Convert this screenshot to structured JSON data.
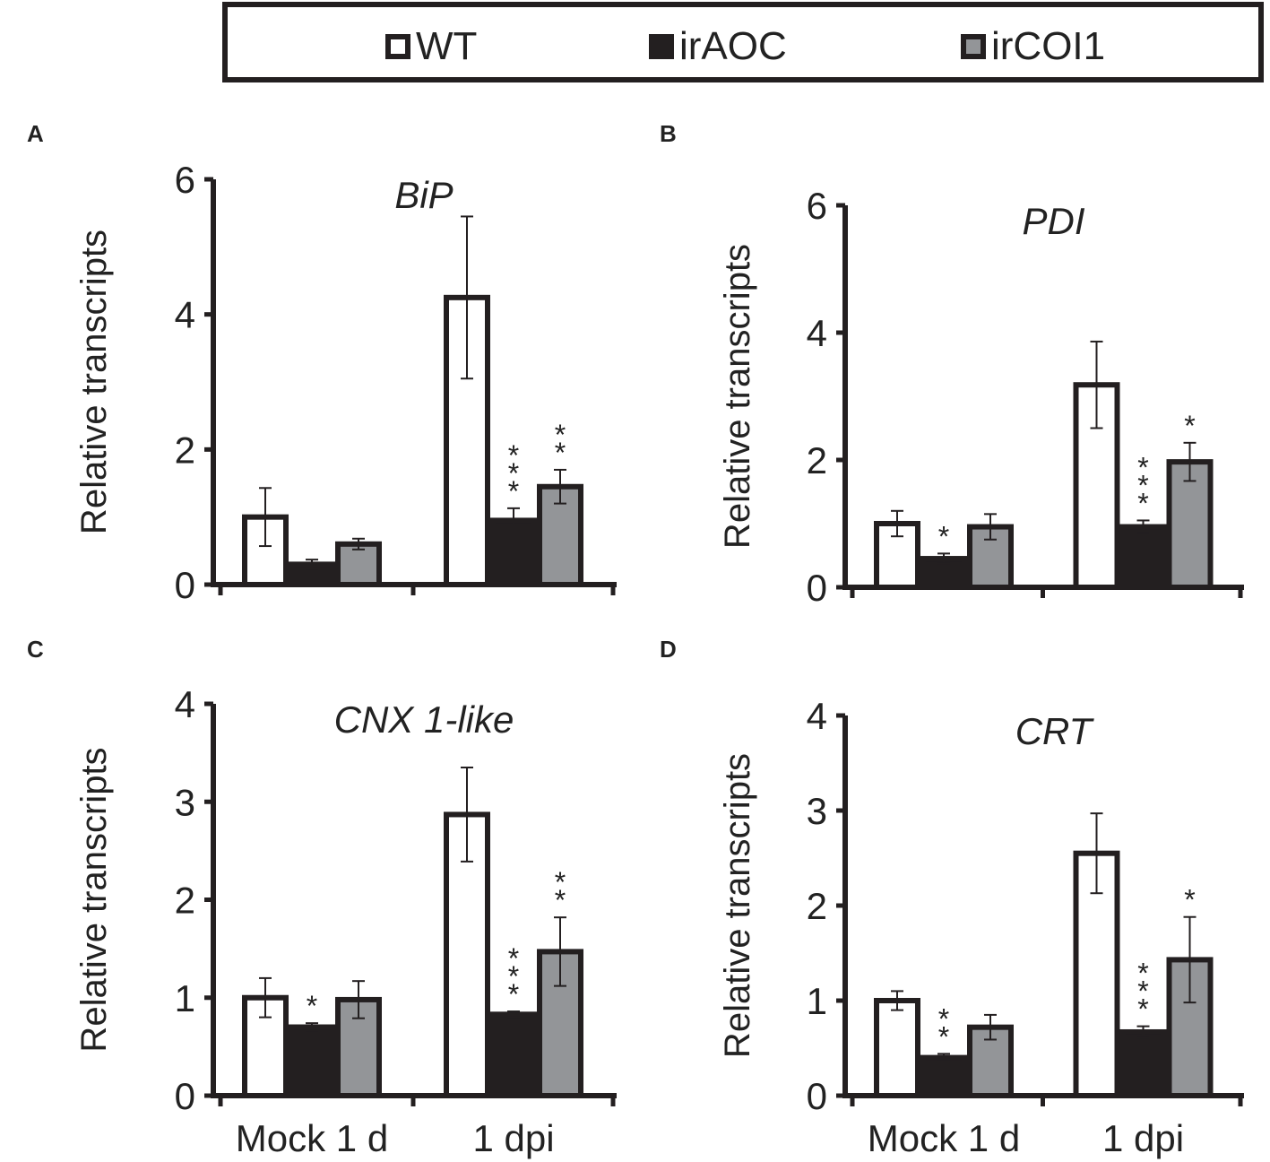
{
  "legend": [
    {
      "label": "WT",
      "color": "#ffffff"
    },
    {
      "label": "irAOC",
      "color": "#231f20"
    },
    {
      "label": "irCOI1",
      "color": "#939598"
    }
  ],
  "chart_data": [
    {
      "panel": "A",
      "type": "bar",
      "title": "BiP",
      "ylabel": "Relative transcripts",
      "xlabel": "",
      "ylim": [
        0,
        6
      ],
      "yticks": [
        0,
        2,
        4,
        6
      ],
      "categories": [
        "",
        ""
      ],
      "series": [
        {
          "name": "WT",
          "values": [
            1.0,
            4.25
          ],
          "errors": [
            0.43,
            1.2
          ],
          "sig": [
            "",
            ""
          ]
        },
        {
          "name": "irAOC",
          "values": [
            0.3,
            0.95
          ],
          "errors": [
            0.07,
            0.18
          ],
          "sig": [
            "",
            "***"
          ]
        },
        {
          "name": "irCOI1",
          "values": [
            0.6,
            1.45
          ],
          "errors": [
            0.08,
            0.25
          ],
          "sig": [
            "",
            "**"
          ]
        }
      ]
    },
    {
      "panel": "B",
      "type": "bar",
      "title": "PDI",
      "ylabel": "Relative transcripts",
      "xlabel": "",
      "ylim": [
        0,
        6
      ],
      "yticks": [
        0,
        2,
        4,
        6
      ],
      "categories": [
        "",
        ""
      ],
      "series": [
        {
          "name": "WT",
          "values": [
            1.0,
            3.18
          ],
          "errors": [
            0.2,
            0.68
          ],
          "sig": [
            "",
            ""
          ]
        },
        {
          "name": "irAOC",
          "values": [
            0.45,
            0.95
          ],
          "errors": [
            0.08,
            0.1
          ],
          "sig": [
            "*",
            "***"
          ]
        },
        {
          "name": "irCOI1",
          "values": [
            0.95,
            1.97
          ],
          "errors": [
            0.2,
            0.3
          ],
          "sig": [
            "",
            "*"
          ]
        }
      ]
    },
    {
      "panel": "C",
      "type": "bar",
      "title": "CNX 1-like",
      "ylabel": "Relative transcripts",
      "xlabel": "",
      "ylim": [
        0,
        4
      ],
      "yticks": [
        0,
        1,
        2,
        3,
        4
      ],
      "categories": [
        "Mock 1 d",
        "1 dpi"
      ],
      "series": [
        {
          "name": "WT",
          "values": [
            1.0,
            2.87
          ],
          "errors": [
            0.2,
            0.48
          ],
          "sig": [
            "",
            ""
          ]
        },
        {
          "name": "irAOC",
          "values": [
            0.7,
            0.83
          ],
          "errors": [
            0.04,
            0.03
          ],
          "sig": [
            "*",
            "***"
          ]
        },
        {
          "name": "irCOI1",
          "values": [
            0.98,
            1.47
          ],
          "errors": [
            0.19,
            0.35
          ],
          "sig": [
            "",
            "**"
          ]
        }
      ]
    },
    {
      "panel": "D",
      "type": "bar",
      "title": "CRT",
      "ylabel": "Relative transcripts",
      "xlabel": "",
      "ylim": [
        0,
        4
      ],
      "yticks": [
        0,
        1,
        2,
        3,
        4
      ],
      "categories": [
        "Mock 1 d",
        "1 dpi"
      ],
      "series": [
        {
          "name": "WT",
          "values": [
            1.0,
            2.55
          ],
          "errors": [
            0.1,
            0.42
          ],
          "sig": [
            "",
            ""
          ]
        },
        {
          "name": "irAOC",
          "values": [
            0.4,
            0.67
          ],
          "errors": [
            0.04,
            0.06
          ],
          "sig": [
            "**",
            "***"
          ]
        },
        {
          "name": "irCOI1",
          "values": [
            0.72,
            1.43
          ],
          "errors": [
            0.13,
            0.45
          ],
          "sig": [
            "",
            "*"
          ]
        }
      ]
    }
  ]
}
